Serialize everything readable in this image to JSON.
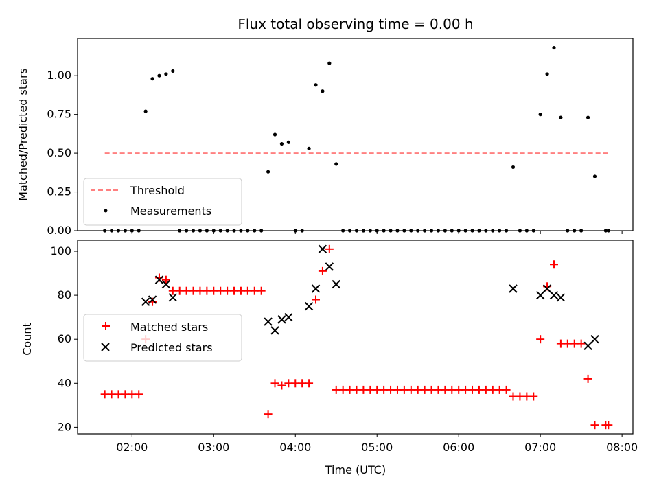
{
  "chart_data": [
    {
      "type": "line+scatter",
      "title": "Flux total observing time = 0.00 h",
      "xlabel": "",
      "ylabel": "Matched/Predicted stars",
      "xlim": [
        "01:20",
        "08:08"
      ],
      "ylim": [
        0,
        1.24
      ],
      "yticks": [
        "0.00",
        "0.25",
        "0.50",
        "0.75",
        "1.00"
      ],
      "legend_placement": "lower-left",
      "series": [
        {
          "name": "Threshold",
          "style": "dashed-line",
          "color": "#ff8080",
          "points": [
            [
              "01:40",
              0.5
            ],
            [
              "07:50",
              0.5
            ]
          ]
        },
        {
          "name": "Measurements",
          "style": "dot",
          "color": "#000000",
          "points": [
            [
              "01:40",
              0
            ],
            [
              "01:45",
              0
            ],
            [
              "01:50",
              0
            ],
            [
              "01:55",
              0
            ],
            [
              "02:00",
              0
            ],
            [
              "02:05",
              0
            ],
            [
              "02:10",
              0.77
            ],
            [
              "02:15",
              0.98
            ],
            [
              "02:20",
              1.0
            ],
            [
              "02:25",
              1.01
            ],
            [
              "02:30",
              1.03
            ],
            [
              "02:35",
              0
            ],
            [
              "02:40",
              0
            ],
            [
              "02:45",
              0
            ],
            [
              "02:50",
              0
            ],
            [
              "02:55",
              0
            ],
            [
              "03:00",
              0
            ],
            [
              "03:05",
              0
            ],
            [
              "03:10",
              0
            ],
            [
              "03:15",
              0
            ],
            [
              "03:20",
              0
            ],
            [
              "03:25",
              0
            ],
            [
              "03:30",
              0
            ],
            [
              "03:35",
              0
            ],
            [
              "03:40",
              0.38
            ],
            [
              "03:45",
              0.62
            ],
            [
              "03:50",
              0.56
            ],
            [
              "03:55",
              0.57
            ],
            [
              "04:00",
              0
            ],
            [
              "04:05",
              0
            ],
            [
              "04:10",
              0.53
            ],
            [
              "04:15",
              0.94
            ],
            [
              "04:20",
              0.9
            ],
            [
              "04:25",
              1.08
            ],
            [
              "04:30",
              0.43
            ],
            [
              "04:35",
              0
            ],
            [
              "04:40",
              0
            ],
            [
              "04:45",
              0
            ],
            [
              "04:50",
              0
            ],
            [
              "04:55",
              0
            ],
            [
              "05:00",
              0
            ],
            [
              "05:05",
              0
            ],
            [
              "05:10",
              0
            ],
            [
              "05:15",
              0
            ],
            [
              "05:20",
              0
            ],
            [
              "05:25",
              0
            ],
            [
              "05:30",
              0
            ],
            [
              "05:35",
              0
            ],
            [
              "05:40",
              0
            ],
            [
              "05:45",
              0
            ],
            [
              "05:50",
              0
            ],
            [
              "05:55",
              0
            ],
            [
              "06:00",
              0
            ],
            [
              "06:05",
              0
            ],
            [
              "06:10",
              0
            ],
            [
              "06:15",
              0
            ],
            [
              "06:20",
              0
            ],
            [
              "06:25",
              0
            ],
            [
              "06:30",
              0
            ],
            [
              "06:35",
              0
            ],
            [
              "06:40",
              0.41
            ],
            [
              "06:45",
              0
            ],
            [
              "06:50",
              0
            ],
            [
              "06:55",
              0
            ],
            [
              "07:00",
              0.75
            ],
            [
              "07:05",
              1.01
            ],
            [
              "07:10",
              1.18
            ],
            [
              "07:15",
              0.73
            ],
            [
              "07:20",
              0
            ],
            [
              "07:25",
              0
            ],
            [
              "07:30",
              0
            ],
            [
              "07:35",
              0.73
            ],
            [
              "07:40",
              0.35
            ],
            [
              "07:48",
              0
            ],
            [
              "07:50",
              0
            ]
          ]
        }
      ]
    },
    {
      "type": "scatter",
      "title": "",
      "xlabel": "Time (UTC)",
      "ylabel": "Count",
      "xlim": [
        "01:20",
        "08:08"
      ],
      "ylim": [
        17,
        105
      ],
      "yticks": [
        "20",
        "40",
        "60",
        "80",
        "100"
      ],
      "xticks": [
        "02:00",
        "03:00",
        "04:00",
        "05:00",
        "06:00",
        "07:00",
        "08:00"
      ],
      "legend_placement": "center-left",
      "series": [
        {
          "name": "Matched stars",
          "marker": "plus",
          "color": "#ff0000",
          "points": [
            [
              "01:40",
              35
            ],
            [
              "01:45",
              35
            ],
            [
              "01:50",
              35
            ],
            [
              "01:55",
              35
            ],
            [
              "02:00",
              35
            ],
            [
              "02:05",
              35
            ],
            [
              "02:10",
              60
            ],
            [
              "02:15",
              77
            ],
            [
              "02:20",
              88
            ],
            [
              "02:25",
              87
            ],
            [
              "02:30",
              82
            ],
            [
              "02:35",
              82
            ],
            [
              "02:40",
              82
            ],
            [
              "02:45",
              82
            ],
            [
              "02:50",
              82
            ],
            [
              "02:55",
              82
            ],
            [
              "03:00",
              82
            ],
            [
              "03:05",
              82
            ],
            [
              "03:10",
              82
            ],
            [
              "03:15",
              82
            ],
            [
              "03:20",
              82
            ],
            [
              "03:25",
              82
            ],
            [
              "03:30",
              82
            ],
            [
              "03:35",
              82
            ],
            [
              "03:40",
              26
            ],
            [
              "03:45",
              40
            ],
            [
              "03:50",
              39
            ],
            [
              "03:55",
              40
            ],
            [
              "04:00",
              40
            ],
            [
              "04:05",
              40
            ],
            [
              "04:10",
              40
            ],
            [
              "04:15",
              78
            ],
            [
              "04:20",
              91
            ],
            [
              "04:25",
              101
            ],
            [
              "04:30",
              37
            ],
            [
              "04:35",
              37
            ],
            [
              "04:40",
              37
            ],
            [
              "04:45",
              37
            ],
            [
              "04:50",
              37
            ],
            [
              "04:55",
              37
            ],
            [
              "05:00",
              37
            ],
            [
              "05:05",
              37
            ],
            [
              "05:10",
              37
            ],
            [
              "05:15",
              37
            ],
            [
              "05:20",
              37
            ],
            [
              "05:25",
              37
            ],
            [
              "05:30",
              37
            ],
            [
              "05:35",
              37
            ],
            [
              "05:40",
              37
            ],
            [
              "05:45",
              37
            ],
            [
              "05:50",
              37
            ],
            [
              "05:55",
              37
            ],
            [
              "06:00",
              37
            ],
            [
              "06:05",
              37
            ],
            [
              "06:10",
              37
            ],
            [
              "06:15",
              37
            ],
            [
              "06:20",
              37
            ],
            [
              "06:25",
              37
            ],
            [
              "06:30",
              37
            ],
            [
              "06:35",
              37
            ],
            [
              "06:40",
              34
            ],
            [
              "06:45",
              34
            ],
            [
              "06:50",
              34
            ],
            [
              "06:55",
              34
            ],
            [
              "07:00",
              60
            ],
            [
              "07:05",
              84
            ],
            [
              "07:10",
              94
            ],
            [
              "07:15",
              58
            ],
            [
              "07:20",
              58
            ],
            [
              "07:25",
              58
            ],
            [
              "07:30",
              58
            ],
            [
              "07:35",
              42
            ],
            [
              "07:40",
              21
            ],
            [
              "07:48",
              21
            ],
            [
              "07:50",
              21
            ]
          ]
        },
        {
          "name": "Predicted stars",
          "marker": "x",
          "color": "#000000",
          "points": [
            [
              "02:10",
              77
            ],
            [
              "02:15",
              78
            ],
            [
              "02:20",
              87
            ],
            [
              "02:25",
              85
            ],
            [
              "02:30",
              79
            ],
            [
              "03:40",
              68
            ],
            [
              "03:45",
              64
            ],
            [
              "03:50",
              69
            ],
            [
              "03:55",
              70
            ],
            [
              "04:10",
              75
            ],
            [
              "04:15",
              83
            ],
            [
              "04:20",
              101
            ],
            [
              "04:25",
              93
            ],
            [
              "04:30",
              85
            ],
            [
              "06:40",
              83
            ],
            [
              "07:00",
              80
            ],
            [
              "07:05",
              83
            ],
            [
              "07:10",
              80
            ],
            [
              "07:15",
              79
            ],
            [
              "07:35",
              57
            ],
            [
              "07:40",
              60
            ]
          ]
        }
      ]
    }
  ]
}
